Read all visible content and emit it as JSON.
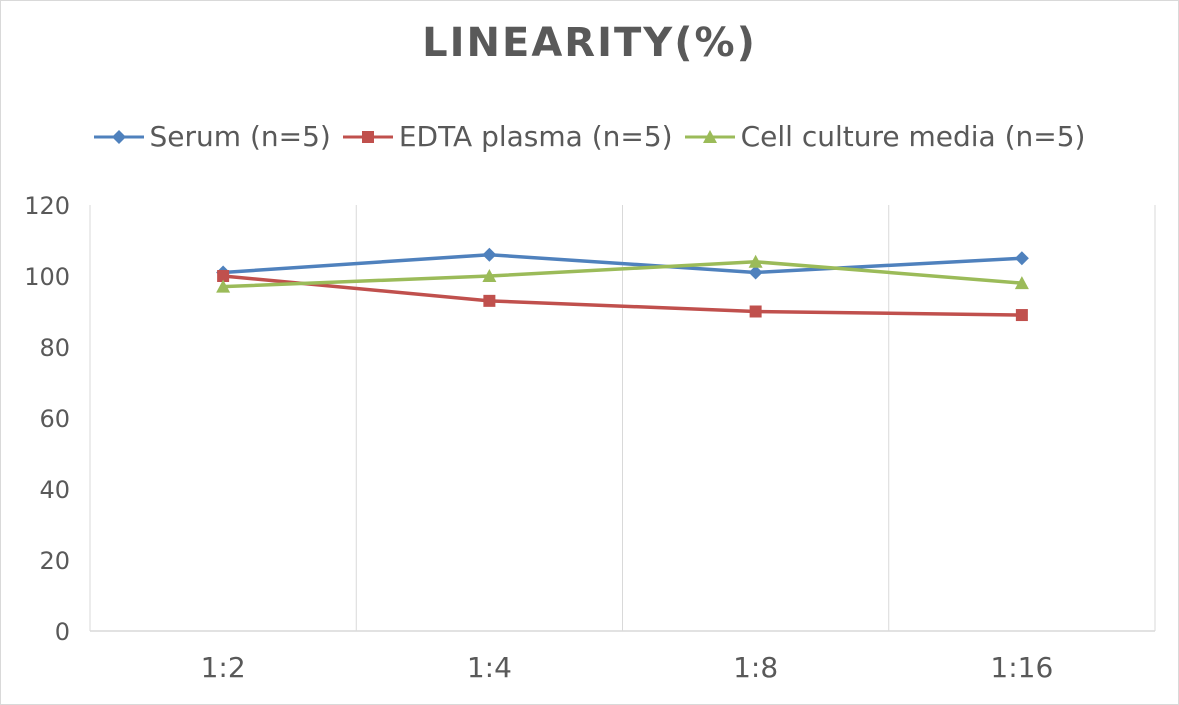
{
  "chart_data": {
    "type": "line",
    "title": "LINEARITY(%)",
    "categories": [
      "1:2",
      "1:4",
      "1:8",
      "1:16"
    ],
    "ylim": [
      0,
      120
    ],
    "yticks": [
      0,
      20,
      40,
      60,
      80,
      100,
      120
    ],
    "grid": "vertical",
    "legend_position": "top",
    "series": [
      {
        "name": "Serum (n=5)",
        "values": [
          101,
          106,
          101,
          105
        ],
        "color": "#4f81bd",
        "marker": "diamond"
      },
      {
        "name": "EDTA plasma (n=5)",
        "values": [
          100,
          93,
          90,
          89
        ],
        "color": "#c0504d",
        "marker": "square"
      },
      {
        "name": "Cell culture media (n=5)",
        "values": [
          97,
          100,
          104,
          98
        ],
        "color": "#9bbb59",
        "marker": "triangle"
      }
    ]
  }
}
